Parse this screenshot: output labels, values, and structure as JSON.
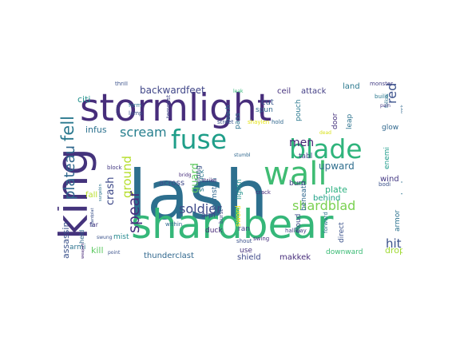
{
  "word_cloud": {
    "words": [
      {
        "text": "lash",
        "color": "#2d6f8e"
      },
      {
        "text": "stormlight",
        "color": "#472d7b"
      },
      {
        "text": "shardbear",
        "color": "#35b779"
      },
      {
        "text": "wall",
        "color": "#3fbc73"
      },
      {
        "text": "fuse",
        "color": "#1f9e89"
      },
      {
        "text": "blade",
        "color": "#2fb47c"
      },
      {
        "text": "king",
        "color": "#44337c"
      },
      {
        "text": "fell",
        "color": "#2a788e"
      },
      {
        "text": "plateau",
        "color": "#31688e"
      },
      {
        "text": "scream",
        "color": "#277f8e"
      },
      {
        "text": "ground",
        "color": "#b5de2b"
      },
      {
        "text": "spear",
        "color": "#46307e"
      },
      {
        "text": "crash",
        "color": "#3e4989"
      },
      {
        "text": "soldier",
        "color": "#3e4a89"
      },
      {
        "text": "shardblad",
        "color": "#7ad151"
      },
      {
        "text": "men",
        "color": "#482576"
      },
      {
        "text": "hit",
        "color": "#3b528b"
      },
      {
        "text": "red",
        "color": "#3b518b"
      },
      {
        "text": "backwardfeet",
        "color": "#404688"
      },
      {
        "text": "citi",
        "color": "#21918c"
      },
      {
        "text": "infus",
        "color": "#2c718e"
      },
      {
        "text": "guard",
        "color": "#5ec962"
      },
      {
        "text": "upward",
        "color": "#2e6e8e"
      },
      {
        "text": "assassin",
        "color": "#3b528b"
      },
      {
        "text": "kill",
        "color": "#5ec962"
      },
      {
        "text": "mist",
        "color": "#23898e"
      },
      {
        "text": "armi",
        "color": "#2c728e"
      },
      {
        "text": "thunderclast",
        "color": "#31688e"
      },
      {
        "text": "use",
        "color": "#46337e"
      },
      {
        "text": "shield",
        "color": "#3e4989"
      },
      {
        "text": "makkek",
        "color": "#472d7b"
      },
      {
        "text": "downward",
        "color": "#3bbb75"
      },
      {
        "text": "drop",
        "color": "#a2da37"
      },
      {
        "text": "armor",
        "color": "#2c728e"
      },
      {
        "text": "broken",
        "color": "#2c728e"
      },
      {
        "text": "wind",
        "color": "#443983"
      },
      {
        "text": "glow",
        "color": "#31688e"
      },
      {
        "text": "enemi",
        "color": "#1e9b8a"
      },
      {
        "text": "plate",
        "color": "#2ab07f"
      },
      {
        "text": "behind",
        "color": "#1fa187"
      },
      {
        "text": "beneath",
        "color": "#31688e"
      },
      {
        "text": "cloud",
        "color": "#3e4a89"
      },
      {
        "text": "direct",
        "color": "#3b528b"
      },
      {
        "text": "door",
        "color": "#46337e"
      },
      {
        "text": "leap",
        "color": "#2c728e"
      },
      {
        "text": "land",
        "color": "#2a788e"
      },
      {
        "text": "attack",
        "color": "#433e85"
      },
      {
        "text": "ceil",
        "color": "#46327e"
      },
      {
        "text": "cut",
        "color": "#38588c"
      },
      {
        "text": "spun",
        "color": "#31688e"
      },
      {
        "text": "pouch",
        "color": "#2a788e"
      },
      {
        "text": "tabl",
        "color": "#404688"
      },
      {
        "text": "burn",
        "color": "#443983"
      },
      {
        "text": "crack",
        "color": "#472d7b"
      },
      {
        "text": "sword",
        "color": "#fde725"
      },
      {
        "text": "lightn",
        "color": "#21918c"
      },
      {
        "text": "pass",
        "color": "#2c728e"
      },
      {
        "text": "reach",
        "color": "#2a788e"
      },
      {
        "text": "ran",
        "color": "#414487"
      },
      {
        "text": "shout",
        "color": "#3b528b"
      },
      {
        "text": "swing",
        "color": "#46307e"
      },
      {
        "text": "hallway",
        "color": "#433e85"
      },
      {
        "text": "duck",
        "color": "#482878"
      },
      {
        "text": "arm",
        "color": "#414487"
      },
      {
        "text": "gemston",
        "color": "#31688e"
      },
      {
        "text": "struck",
        "color": "#2a788e"
      },
      {
        "text": "along",
        "color": "#3b528b"
      },
      {
        "text": "across",
        "color": "#3e4a89"
      },
      {
        "text": "fall",
        "color": "#b8de29"
      },
      {
        "text": "bridg",
        "color": "#472d7b"
      },
      {
        "text": "strike",
        "color": "#46327e"
      },
      {
        "text": "within",
        "color": "#31688e"
      },
      {
        "text": "far",
        "color": "#443983"
      },
      {
        "text": "point",
        "color": "#3b528b"
      },
      {
        "text": "held",
        "color": "#31688e"
      },
      {
        "text": "thrill",
        "color": "#3b528b"
      },
      {
        "text": "form",
        "color": "#2c728e"
      },
      {
        "text": "lamp",
        "color": "#3b528b"
      },
      {
        "text": "tempest",
        "color": "#404688"
      },
      {
        "text": "leak",
        "color": "#35b779"
      },
      {
        "text": "street",
        "color": "#3b528b"
      },
      {
        "text": "shaylen",
        "color": "#e5e419"
      },
      {
        "text": "hold",
        "color": "#31688e"
      },
      {
        "text": "monster",
        "color": "#433e85"
      },
      {
        "text": "build",
        "color": "#2a788e"
      },
      {
        "text": "follow",
        "color": "#2c728e"
      },
      {
        "text": "pain",
        "color": "#443983"
      },
      {
        "text": "bodi",
        "color": "#3b528b"
      },
      {
        "text": "dead",
        "color": "#d8e219"
      },
      {
        "text": "stumbl",
        "color": "#31688e"
      },
      {
        "text": "burst",
        "color": "#3e4a89"
      },
      {
        "text": "forward",
        "color": "#2c728e"
      },
      {
        "text": "block",
        "color": "#443983"
      },
      {
        "text": "swung",
        "color": "#3b528b"
      },
      {
        "text": "weapon",
        "color": "#482878"
      },
      {
        "text": "shardplat",
        "color": "#3b528b"
      },
      {
        "text": "surgebin",
        "color": "#2c728e"
      },
      {
        "text": "stron",
        "color": "#3e4a89"
      },
      {
        "text": "rock",
        "color": "#31688e"
      }
    ]
  }
}
